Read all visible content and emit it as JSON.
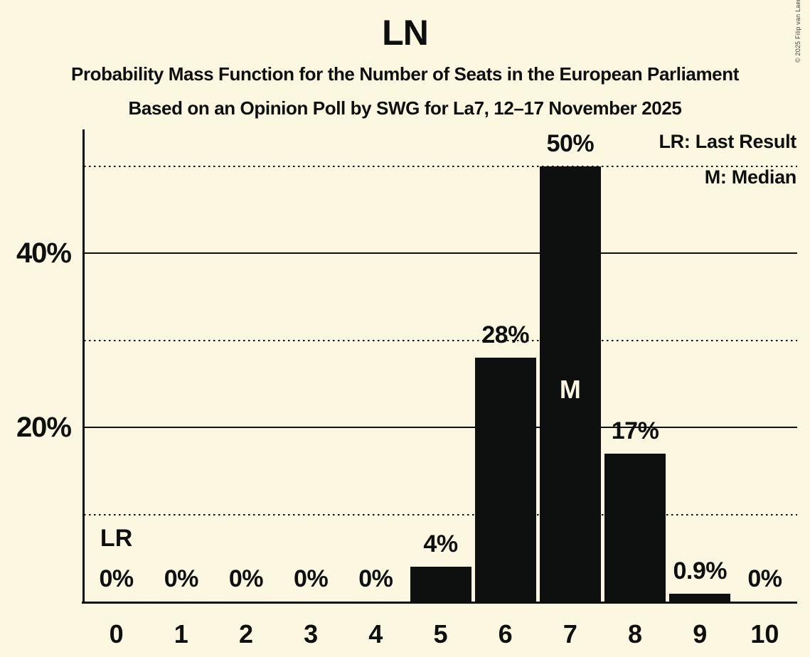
{
  "header": {
    "title": "LN",
    "subtitle1": "Probability Mass Function for the Number of Seats in the European Parliament",
    "subtitle2": "Based on an Opinion Poll by SWG for La7, 12–17 November 2025"
  },
  "legend": {
    "lr": "LR: Last Result",
    "median": "M: Median"
  },
  "copyright": "© 2025 Filip van Laenen",
  "colors": {
    "background": "#fcf7e0",
    "ink": "#0e0f0f"
  },
  "y_axis": {
    "ticks": [
      {
        "value": 20,
        "label": "20%"
      },
      {
        "value": 40,
        "label": "40%"
      }
    ]
  },
  "chart_data": {
    "type": "bar",
    "title": "LN",
    "xlabel": "",
    "ylabel": "",
    "categories": [
      "0",
      "1",
      "2",
      "3",
      "4",
      "5",
      "6",
      "7",
      "8",
      "9",
      "10"
    ],
    "values": [
      0,
      0,
      0,
      0,
      0,
      4,
      28,
      50,
      17,
      0.9,
      0
    ],
    "value_labels": [
      "0%",
      "0%",
      "0%",
      "0%",
      "0%",
      "4%",
      "28%",
      "50%",
      "17%",
      "0.9%",
      "0%"
    ],
    "ylim": [
      0,
      54
    ],
    "grid": "on",
    "solid_gridlines": [
      20,
      40
    ],
    "dotted_gridlines": [
      10,
      30,
      50
    ],
    "legend_position": "top-right",
    "annotations": {
      "lr_text": "LR",
      "lr_bar_index": 0,
      "median_text": "M",
      "median_bar_index": 7
    }
  }
}
